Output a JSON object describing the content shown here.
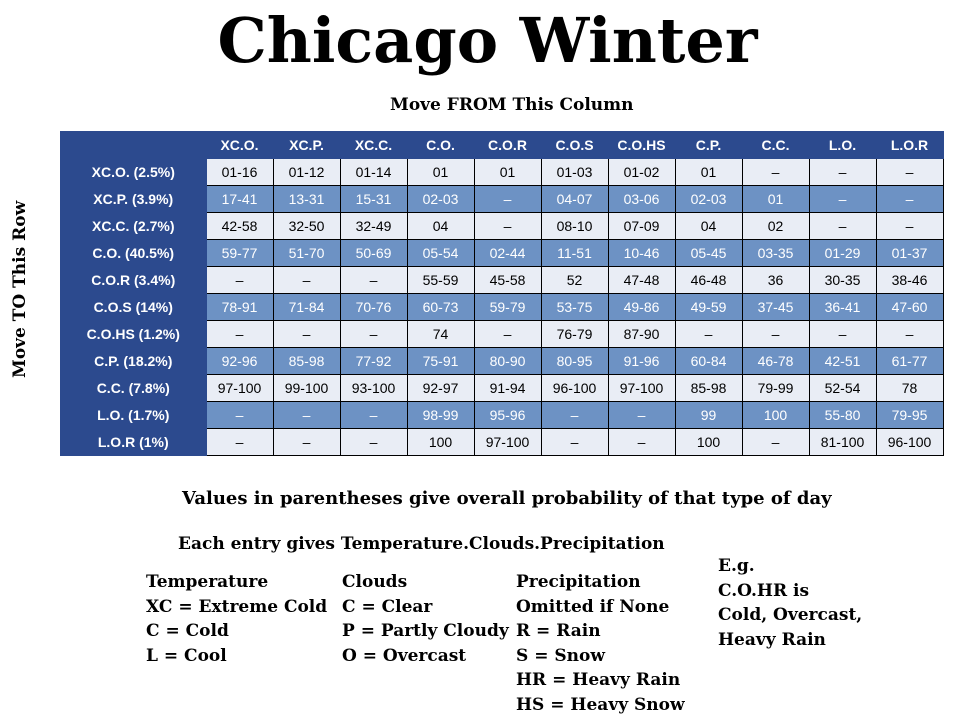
{
  "title": "Chicago Winter",
  "column_caption": "Move FROM This Column",
  "row_caption": "Move TO This Row",
  "columns": [
    "XC.O.",
    "XC.P.",
    "XC.C.",
    "C.O.",
    "C.O.R",
    "C.O.S",
    "C.O.HS",
    "C.P.",
    "C.C.",
    "L.O.",
    "L.O.R"
  ],
  "rows": [
    {
      "label": "XC.O. (2.5%)",
      "cells": [
        "01-16",
        "01-12",
        "01-14",
        "01",
        "01",
        "01-03",
        "01-02",
        "01",
        "–",
        "–",
        "–"
      ]
    },
    {
      "label": "XC.P. (3.9%)",
      "cells": [
        "17-41",
        "13-31",
        "15-31",
        "02-03",
        "–",
        "04-07",
        "03-06",
        "02-03",
        "01",
        "–",
        "–"
      ]
    },
    {
      "label": "XC.C. (2.7%)",
      "cells": [
        "42-58",
        "32-50",
        "32-49",
        "04",
        "–",
        "08-10",
        "07-09",
        "04",
        "02",
        "–",
        "–"
      ]
    },
    {
      "label": "C.O. (40.5%)",
      "cells": [
        "59-77",
        "51-70",
        "50-69",
        "05-54",
        "02-44",
        "11-51",
        "10-46",
        "05-45",
        "03-35",
        "01-29",
        "01-37"
      ]
    },
    {
      "label": "C.O.R (3.4%)",
      "cells": [
        "–",
        "–",
        "–",
        "55-59",
        "45-58",
        "52",
        "47-48",
        "46-48",
        "36",
        "30-35",
        "38-46"
      ]
    },
    {
      "label": "C.O.S (14%)",
      "cells": [
        "78-91",
        "71-84",
        "70-76",
        "60-73",
        "59-79",
        "53-75",
        "49-86",
        "49-59",
        "37-45",
        "36-41",
        "47-60"
      ]
    },
    {
      "label": "C.O.HS (1.2%)",
      "cells": [
        "–",
        "–",
        "–",
        "74",
        "–",
        "76-79",
        "87-90",
        "–",
        "–",
        "–",
        "–"
      ]
    },
    {
      "label": "C.P. (18.2%)",
      "cells": [
        "92-96",
        "85-98",
        "77-92",
        "75-91",
        "80-90",
        "80-95",
        "91-96",
        "60-84",
        "46-78",
        "42-51",
        "61-77"
      ]
    },
    {
      "label": "C.C. (7.8%)",
      "cells": [
        "97-100",
        "99-100",
        "93-100",
        "92-97",
        "91-94",
        "96-100",
        "97-100",
        "85-98",
        "79-99",
        "52-54",
        "78"
      ]
    },
    {
      "label": "L.O. (1.7%)",
      "cells": [
        "–",
        "–",
        "–",
        "98-99",
        "95-96",
        "–",
        "–",
        "99",
        "100",
        "55-80",
        "79-95"
      ]
    },
    {
      "label": "L.O.R (1%)",
      "cells": [
        "–",
        "–",
        "–",
        "100",
        "97-100",
        "–",
        "–",
        "100",
        "–",
        "81-100",
        "96-100"
      ]
    }
  ],
  "note_parentheses": "Values in parentheses give overall probability of that type of day",
  "note_entry": "Each entry gives Temperature.Clouds.Precipitation",
  "legend": {
    "temperature": [
      "Temperature",
      "XC = Extreme Cold",
      "C = Cold",
      "L = Cool"
    ],
    "clouds": [
      "Clouds",
      "C = Clear",
      "P = Partly Cloudy",
      "O = Overcast"
    ],
    "precipitation": [
      "Precipitation",
      "Omitted if None",
      "R = Rain",
      "S = Snow",
      "HR = Heavy Rain",
      "HS = Heavy Snow"
    ],
    "example": [
      "E.g.",
      "C.O.HR is",
      "Cold, Overcast,",
      "Heavy Rain"
    ]
  },
  "colors": {
    "header_bg": "#2c4a8e",
    "dark_row": "#6d92c4",
    "light_row": "#e9edf5"
  }
}
